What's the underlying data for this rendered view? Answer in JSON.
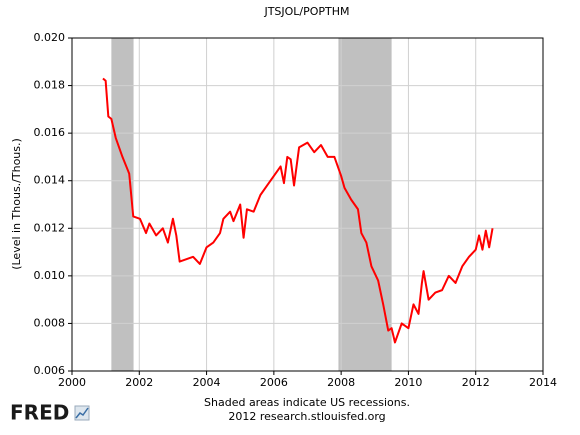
{
  "chart_data": {
    "type": "line",
    "title": "JTSJOL/POPTHM",
    "ylabel": "(Level in Thous./Thous.)",
    "notes": [
      "Shaded areas indicate US recessions.",
      "2012 research.stlouisfed.org"
    ],
    "logo": "FRED",
    "xlim": [
      2000,
      2014
    ],
    "xticks": [
      2000,
      2002,
      2004,
      2006,
      2008,
      2010,
      2012,
      2014
    ],
    "ylim": [
      0.006,
      0.02
    ],
    "yticks": [
      0.006,
      0.008,
      {
        "value": 0.01,
        "label": "0.010"
      },
      0.012,
      0.014,
      0.016,
      0.018,
      {
        "value": 0.02,
        "label": "0.020"
      }
    ],
    "grid": true,
    "recessions": [
      [
        2001.17,
        2001.83
      ],
      [
        2007.92,
        2009.5
      ]
    ],
    "recession_color": "#c0c0c0",
    "x": [
      2000.92,
      2001.0,
      2001.08,
      2001.17,
      2001.3,
      2001.5,
      2001.7,
      2001.82,
      2002.02,
      2002.2,
      2002.3,
      2002.5,
      2002.7,
      2002.85,
      2003.0,
      2003.1,
      2003.2,
      2003.4,
      2003.6,
      2003.8,
      2004.0,
      2004.2,
      2004.4,
      2004.5,
      2004.7,
      2004.8,
      2005.0,
      2005.1,
      2005.2,
      2005.4,
      2005.6,
      2005.8,
      2006.0,
      2006.2,
      2006.3,
      2006.4,
      2006.5,
      2006.6,
      2006.75,
      2007.0,
      2007.2,
      2007.4,
      2007.6,
      2007.8,
      2008.0,
      2008.1,
      2008.3,
      2008.5,
      2008.6,
      2008.75,
      2008.9,
      2009.1,
      2009.25,
      2009.4,
      2009.5,
      2009.6,
      2009.8,
      2010.0,
      2010.15,
      2010.3,
      2010.4,
      2010.45,
      2010.6,
      2010.8,
      2011.0,
      2011.2,
      2011.4,
      2011.6,
      2011.8,
      2012.0,
      2012.1,
      2012.2,
      2012.3,
      2012.4,
      2012.5
    ],
    "series": [
      {
        "name": "JTSJOL/POPTHM",
        "color": "#ff0000",
        "values": [
          0.0183,
          0.0182,
          0.0167,
          0.0166,
          0.0158,
          0.015,
          0.0143,
          0.0125,
          0.0124,
          0.0118,
          0.0122,
          0.0117,
          0.012,
          0.0114,
          0.0124,
          0.0117,
          0.0106,
          0.0107,
          0.0108,
          0.0105,
          0.0112,
          0.0114,
          0.0118,
          0.0124,
          0.0127,
          0.0123,
          0.013,
          0.0116,
          0.0128,
          0.0127,
          0.0134,
          0.0138,
          0.0142,
          0.0146,
          0.0139,
          0.015,
          0.0149,
          0.0138,
          0.0154,
          0.0156,
          0.0152,
          0.0155,
          0.015,
          0.015,
          0.0142,
          0.0137,
          0.0132,
          0.0128,
          0.0118,
          0.0114,
          0.0104,
          0.0098,
          0.0088,
          0.0077,
          0.0078,
          0.0072,
          0.008,
          0.0078,
          0.0088,
          0.0084,
          0.0097,
          0.0102,
          0.009,
          0.0093,
          0.0094,
          0.01,
          0.0097,
          0.0104,
          0.0108,
          0.0111,
          0.0117,
          0.0111,
          0.0119,
          0.0112,
          0.012
        ]
      }
    ]
  }
}
